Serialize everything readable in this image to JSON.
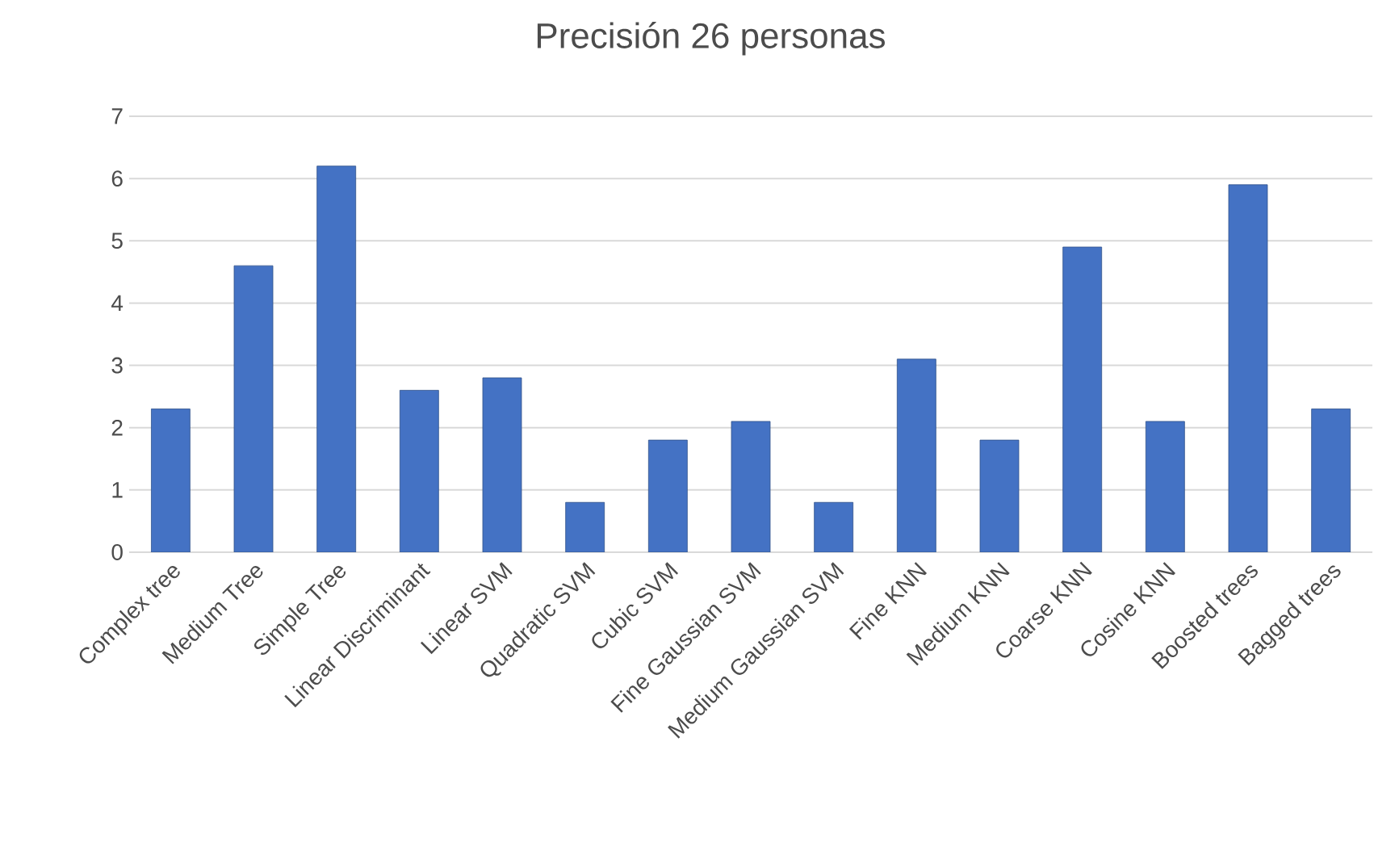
{
  "chart_data": {
    "type": "bar",
    "title": "Precisión 26 personas",
    "categories": [
      "Complex tree",
      "Medium Tree",
      "Simple Tree",
      "Linear Discriminant",
      "Linear SVM",
      "Quadratic SVM",
      "Cubic SVM",
      "Fine Gaussian SVM",
      "Medium Gaussian SVM",
      "Fine KNN",
      "Medium KNN",
      "Coarse KNN",
      "Cosine KNN",
      "Boosted trees",
      "Bagged trees"
    ],
    "values": [
      2.3,
      4.6,
      6.2,
      2.6,
      2.8,
      0.8,
      1.8,
      2.1,
      0.8,
      3.1,
      1.8,
      4.9,
      2.1,
      5.9,
      2.3
    ],
    "color": "#4472c4",
    "ylim": [
      0,
      7
    ],
    "yticks": [
      0,
      1,
      2,
      3,
      4,
      5,
      6,
      7
    ],
    "grid": "y"
  }
}
